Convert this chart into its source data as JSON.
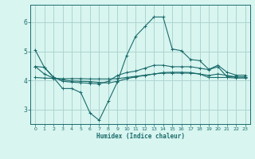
{
  "xlabel": "Humidex (Indice chaleur)",
  "bg_color": "#d8f5f0",
  "grid_color": "#aed4d0",
  "line_color": "#1a6b6b",
  "xlim": [
    -0.5,
    23.5
  ],
  "ylim": [
    2.5,
    6.6
  ],
  "yticks": [
    3,
    4,
    5,
    6
  ],
  "xticks": [
    0,
    1,
    2,
    3,
    4,
    5,
    6,
    7,
    8,
    9,
    10,
    11,
    12,
    13,
    14,
    15,
    16,
    17,
    18,
    19,
    20,
    21,
    22,
    23
  ],
  "line1_x": [
    0,
    1,
    2,
    3,
    4,
    5,
    6,
    7,
    8,
    9,
    10,
    11,
    12,
    13,
    14,
    15,
    16,
    17,
    18,
    19,
    20,
    21,
    22,
    23
  ],
  "line1_y": [
    5.05,
    4.45,
    4.1,
    3.72,
    3.72,
    3.58,
    2.88,
    2.63,
    3.28,
    3.95,
    4.85,
    5.52,
    5.85,
    6.18,
    6.18,
    5.08,
    5.02,
    4.72,
    4.68,
    4.38,
    4.52,
    4.28,
    4.18,
    4.18
  ],
  "line2_x": [
    0,
    1,
    2,
    3,
    4,
    5,
    6,
    7,
    8,
    9,
    10,
    11,
    12,
    13,
    14,
    15,
    16,
    17,
    18,
    19,
    20,
    21,
    22,
    23
  ],
  "line2_y": [
    4.1,
    4.08,
    4.07,
    4.06,
    4.06,
    4.06,
    4.05,
    4.05,
    4.05,
    4.06,
    4.1,
    4.14,
    4.18,
    4.22,
    4.25,
    4.25,
    4.25,
    4.25,
    4.22,
    4.1,
    4.1,
    4.1,
    4.08,
    4.08
  ],
  "line3_x": [
    0,
    1,
    2,
    3,
    4,
    5,
    6,
    7,
    8,
    9,
    10,
    11,
    12,
    13,
    14,
    15,
    16,
    17,
    18,
    19,
    20,
    21,
    22,
    23
  ],
  "line3_y": [
    4.48,
    4.22,
    4.08,
    4.02,
    3.98,
    3.97,
    3.96,
    3.93,
    3.91,
    3.97,
    4.06,
    4.12,
    4.17,
    4.22,
    4.27,
    4.28,
    4.28,
    4.27,
    4.22,
    4.17,
    4.22,
    4.17,
    4.12,
    4.12
  ],
  "line4_x": [
    0,
    1,
    2,
    3,
    4,
    5,
    6,
    7,
    8,
    9,
    10,
    11,
    12,
    13,
    14,
    15,
    16,
    17,
    18,
    19,
    20,
    21,
    22,
    23
  ],
  "line4_y": [
    4.48,
    4.45,
    4.12,
    3.97,
    3.94,
    3.92,
    3.9,
    3.88,
    3.97,
    4.17,
    4.27,
    4.32,
    4.42,
    4.52,
    4.52,
    4.47,
    4.47,
    4.47,
    4.42,
    4.37,
    4.47,
    4.12,
    4.12,
    4.12
  ]
}
